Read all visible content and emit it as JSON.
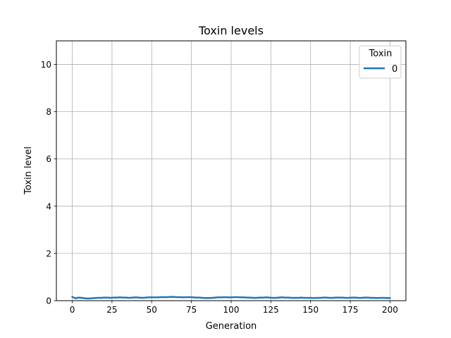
{
  "chart_data": {
    "type": "line",
    "title": "Toxin levels",
    "xlabel": "Generation",
    "ylabel": "Toxin level",
    "xlim": [
      -10,
      210
    ],
    "ylim": [
      0,
      11
    ],
    "x_ticks": [
      0,
      25,
      50,
      75,
      100,
      125,
      150,
      175,
      200
    ],
    "y_ticks": [
      0,
      2,
      4,
      6,
      8,
      10
    ],
    "grid": true,
    "legend": {
      "title": "Toxin",
      "placement": "top-right"
    },
    "series": [
      {
        "name": "0",
        "color": "#1f77b4",
        "x": [
          0,
          2,
          4,
          6,
          8,
          10,
          12,
          14,
          16,
          18,
          20,
          22,
          24,
          26,
          28,
          30,
          32,
          34,
          36,
          38,
          40,
          42,
          44,
          46,
          48,
          50,
          52,
          54,
          56,
          58,
          60,
          62,
          64,
          66,
          68,
          70,
          72,
          74,
          76,
          78,
          80,
          82,
          84,
          86,
          88,
          90,
          92,
          94,
          96,
          98,
          100,
          102,
          104,
          106,
          108,
          110,
          112,
          114,
          116,
          118,
          120,
          122,
          124,
          126,
          128,
          130,
          132,
          134,
          136,
          138,
          140,
          142,
          144,
          146,
          148,
          150,
          152,
          154,
          156,
          158,
          160,
          162,
          164,
          166,
          168,
          170,
          172,
          174,
          176,
          178,
          180,
          182,
          184,
          186,
          188,
          190,
          192,
          194,
          196,
          198,
          200
        ],
        "values": [
          0.16,
          0.1,
          0.13,
          0.12,
          0.1,
          0.09,
          0.1,
          0.11,
          0.12,
          0.12,
          0.13,
          0.13,
          0.12,
          0.13,
          0.13,
          0.14,
          0.13,
          0.13,
          0.12,
          0.13,
          0.14,
          0.13,
          0.12,
          0.13,
          0.14,
          0.14,
          0.14,
          0.14,
          0.15,
          0.15,
          0.15,
          0.16,
          0.16,
          0.15,
          0.15,
          0.14,
          0.15,
          0.15,
          0.14,
          0.13,
          0.13,
          0.12,
          0.11,
          0.11,
          0.12,
          0.13,
          0.14,
          0.14,
          0.15,
          0.14,
          0.14,
          0.15,
          0.15,
          0.14,
          0.14,
          0.13,
          0.13,
          0.12,
          0.12,
          0.13,
          0.13,
          0.14,
          0.13,
          0.12,
          0.12,
          0.13,
          0.14,
          0.13,
          0.13,
          0.12,
          0.12,
          0.12,
          0.13,
          0.12,
          0.12,
          0.12,
          0.11,
          0.12,
          0.12,
          0.13,
          0.13,
          0.12,
          0.12,
          0.13,
          0.13,
          0.13,
          0.12,
          0.12,
          0.13,
          0.13,
          0.12,
          0.12,
          0.13,
          0.13,
          0.12,
          0.12,
          0.11,
          0.12,
          0.12,
          0.11,
          0.11
        ]
      }
    ]
  }
}
